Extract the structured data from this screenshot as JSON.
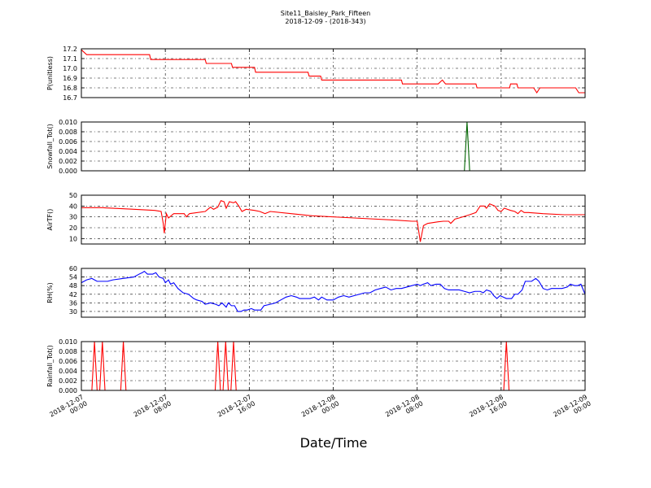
{
  "chart_data": {
    "type": "line",
    "title": "Site11_Baisley_Park_Fifteen",
    "subtitle": "2018-12-09 - (2018-343)",
    "xlabel": "Date/Time",
    "x_ticks": [
      "2018-12-07\n00:00",
      "2018-12-07\n08:00",
      "2018-12-07\n16:00",
      "2018-12-08\n00:00",
      "2018-12-08\n08:00",
      "2018-12-08\n16:00",
      "2018-12-09\n00:00"
    ],
    "x_range_hours": [
      0,
      48
    ],
    "grid": true,
    "panels": [
      {
        "ylabel": "P(unitless)",
        "color": "#ff0000",
        "ylim": [
          16.7,
          17.2
        ],
        "yticks": [
          "17.2",
          "17.1",
          "17.0",
          "16.9",
          "16.8",
          "16.7"
        ],
        "ytick_values": [
          17.2,
          17.1,
          17.0,
          16.9,
          16.8,
          16.7
        ],
        "points": [
          [
            0,
            17.19
          ],
          [
            0.5,
            17.14
          ],
          [
            6.5,
            17.14
          ],
          [
            6.6,
            17.09
          ],
          [
            11.8,
            17.09
          ],
          [
            11.9,
            17.05
          ],
          [
            14.3,
            17.05
          ],
          [
            14.4,
            17.01
          ],
          [
            16.5,
            17.01
          ],
          [
            16.6,
            16.96
          ],
          [
            21.6,
            16.96
          ],
          [
            21.7,
            16.92
          ],
          [
            22.8,
            16.92
          ],
          [
            22.9,
            16.88
          ],
          [
            30.5,
            16.88
          ],
          [
            30.6,
            16.84
          ],
          [
            34,
            16.84
          ],
          [
            34.4,
            16.88
          ],
          [
            34.7,
            16.84
          ],
          [
            37.6,
            16.84
          ],
          [
            37.7,
            16.8
          ],
          [
            40.8,
            16.8
          ],
          [
            40.9,
            16.84
          ],
          [
            41.5,
            16.84
          ],
          [
            41.6,
            16.8
          ],
          [
            43.1,
            16.8
          ],
          [
            43.4,
            16.75
          ],
          [
            43.7,
            16.8
          ],
          [
            47.1,
            16.8
          ],
          [
            47.4,
            16.75
          ],
          [
            48,
            16.75
          ]
        ]
      },
      {
        "ylabel": "Snowfall_Tot()",
        "color": "#006400",
        "ylim": [
          0,
          0.01
        ],
        "yticks": [
          "0.010",
          "0.008",
          "0.006",
          "0.004",
          "0.002",
          "0.000"
        ],
        "ytick_values": [
          0.01,
          0.008,
          0.006,
          0.004,
          0.002,
          0
        ],
        "points": [
          [
            0,
            0
          ],
          [
            36.5,
            0
          ],
          [
            36.75,
            0.01
          ],
          [
            37,
            0
          ],
          [
            48,
            0
          ]
        ]
      },
      {
        "ylabel": "AirTF()",
        "color": "#ff0000",
        "ylim": [
          5,
          50
        ],
        "yticks": [
          "50",
          "40",
          "30",
          "20",
          "10"
        ],
        "ytick_values": [
          50,
          40,
          30,
          20,
          10
        ],
        "points": [
          [
            0,
            38.5
          ],
          [
            2,
            38.5
          ],
          [
            5,
            37
          ],
          [
            7,
            36
          ],
          [
            7.6,
            35
          ],
          [
            7.8,
            24
          ],
          [
            7.9,
            15
          ],
          [
            8.1,
            33
          ],
          [
            8.3,
            29
          ],
          [
            8.8,
            33
          ],
          [
            9.8,
            33
          ],
          [
            10,
            30
          ],
          [
            10.3,
            33
          ],
          [
            11.8,
            35
          ],
          [
            12.3,
            39
          ],
          [
            12.6,
            37
          ],
          [
            13,
            39
          ],
          [
            13.3,
            45
          ],
          [
            13.6,
            44
          ],
          [
            13.8,
            38
          ],
          [
            14.1,
            44
          ],
          [
            14.5,
            43
          ],
          [
            14.7,
            44
          ],
          [
            15,
            40
          ],
          [
            15.3,
            35
          ],
          [
            15.7,
            37
          ],
          [
            16.5,
            36
          ],
          [
            17,
            35
          ],
          [
            17.5,
            33
          ],
          [
            18,
            35
          ],
          [
            20,
            33
          ],
          [
            22,
            31
          ],
          [
            26,
            29
          ],
          [
            30,
            27
          ],
          [
            31.5,
            26
          ],
          [
            32,
            26
          ],
          [
            32.3,
            7
          ],
          [
            32.6,
            22
          ],
          [
            33,
            24
          ],
          [
            34,
            25.5
          ],
          [
            34.5,
            26
          ],
          [
            35,
            26
          ],
          [
            35.2,
            24
          ],
          [
            35.6,
            28
          ],
          [
            36,
            29
          ],
          [
            36.5,
            30.5
          ],
          [
            37,
            32
          ],
          [
            37.6,
            34
          ],
          [
            38,
            40
          ],
          [
            38.4,
            40
          ],
          [
            38.6,
            38
          ],
          [
            38.9,
            42
          ],
          [
            39.4,
            40
          ],
          [
            39.7,
            36
          ],
          [
            40,
            35
          ],
          [
            40.3,
            38
          ],
          [
            40.9,
            36
          ],
          [
            41.3,
            35
          ],
          [
            41.6,
            33
          ],
          [
            41.9,
            36
          ],
          [
            42.2,
            34
          ],
          [
            42.6,
            34
          ],
          [
            44,
            33
          ],
          [
            46,
            32
          ],
          [
            48,
            32
          ]
        ]
      },
      {
        "ylabel": "RH(%)",
        "color": "#0000ff",
        "ylim": [
          26,
          60
        ],
        "yticks": [
          "60",
          "54",
          "48",
          "42",
          "36",
          "30"
        ],
        "ytick_values": [
          60,
          54,
          48,
          42,
          36,
          30
        ],
        "points": [
          [
            0,
            50
          ],
          [
            0.5,
            52
          ],
          [
            1,
            53
          ],
          [
            1.5,
            51
          ],
          [
            2.5,
            51
          ],
          [
            3,
            52
          ],
          [
            4,
            53
          ],
          [
            5,
            54
          ],
          [
            5.5,
            56
          ],
          [
            5.8,
            57
          ],
          [
            6,
            58
          ],
          [
            6.3,
            56
          ],
          [
            6.8,
            56
          ],
          [
            7.1,
            57
          ],
          [
            7.4,
            54
          ],
          [
            7.8,
            53
          ],
          [
            8,
            50
          ],
          [
            8.3,
            52
          ],
          [
            8.5,
            49
          ],
          [
            8.8,
            50
          ],
          [
            9.2,
            46
          ],
          [
            9.7,
            43
          ],
          [
            10.2,
            42
          ],
          [
            10.7,
            39
          ],
          [
            11,
            38
          ],
          [
            11.5,
            37
          ],
          [
            11.8,
            35
          ],
          [
            12.3,
            36
          ],
          [
            12.8,
            35
          ],
          [
            13.1,
            34
          ],
          [
            13.4,
            36
          ],
          [
            13.8,
            33
          ],
          [
            14,
            36
          ],
          [
            14.3,
            34
          ],
          [
            14.6,
            34
          ],
          [
            14.9,
            30
          ],
          [
            15.2,
            30
          ],
          [
            15.5,
            31
          ],
          [
            15.8,
            31
          ],
          [
            16.2,
            32
          ],
          [
            16.5,
            31
          ],
          [
            17.1,
            31
          ],
          [
            17.4,
            34
          ],
          [
            18,
            35
          ],
          [
            18.5,
            36
          ],
          [
            19,
            38
          ],
          [
            19.5,
            40
          ],
          [
            20,
            41
          ],
          [
            20.5,
            40
          ],
          [
            20.8,
            39
          ],
          [
            21.2,
            39
          ],
          [
            21.8,
            39
          ],
          [
            22.2,
            40
          ],
          [
            22.6,
            38
          ],
          [
            22.9,
            40
          ],
          [
            23.4,
            38
          ],
          [
            24,
            38
          ],
          [
            24.5,
            40
          ],
          [
            25,
            41
          ],
          [
            25.5,
            40
          ],
          [
            26,
            41
          ],
          [
            26.5,
            42
          ],
          [
            27,
            43
          ],
          [
            27.5,
            43
          ],
          [
            28,
            45
          ],
          [
            28.5,
            46
          ],
          [
            29,
            47
          ],
          [
            29.5,
            45
          ],
          [
            30,
            46
          ],
          [
            30.5,
            46
          ],
          [
            31,
            47
          ],
          [
            31.5,
            48
          ],
          [
            32,
            49
          ],
          [
            32.3,
            48
          ],
          [
            32.6,
            49
          ],
          [
            33,
            50
          ],
          [
            33.3,
            48
          ],
          [
            33.8,
            49
          ],
          [
            34.2,
            49
          ],
          [
            34.6,
            46
          ],
          [
            35,
            45
          ],
          [
            35.5,
            45
          ],
          [
            36,
            45
          ],
          [
            36.5,
            44
          ],
          [
            37,
            43
          ],
          [
            37.5,
            44
          ],
          [
            38,
            44
          ],
          [
            38.3,
            43
          ],
          [
            38.6,
            45
          ],
          [
            39,
            44
          ],
          [
            39.3,
            41
          ],
          [
            39.6,
            39
          ],
          [
            39.9,
            41
          ],
          [
            40.2,
            40
          ],
          [
            40.5,
            39
          ],
          [
            41,
            39
          ],
          [
            41.3,
            42
          ],
          [
            41.6,
            42
          ],
          [
            42,
            45
          ],
          [
            42.3,
            51
          ],
          [
            42.6,
            51
          ],
          [
            42.9,
            51
          ],
          [
            43.3,
            53
          ],
          [
            43.6,
            51
          ],
          [
            44,
            46
          ],
          [
            44.4,
            45
          ],
          [
            44.8,
            46
          ],
          [
            45.3,
            46
          ],
          [
            45.8,
            46
          ],
          [
            46.3,
            47
          ],
          [
            46.6,
            49
          ],
          [
            47,
            48
          ],
          [
            47.3,
            48
          ],
          [
            47.6,
            49
          ],
          [
            48,
            42
          ]
        ]
      },
      {
        "ylabel": "Rainfall_Tot()",
        "color": "#ff0000",
        "ylim": [
          0,
          0.01
        ],
        "yticks": [
          "0.010",
          "0.008",
          "0.006",
          "0.004",
          "0.002",
          "0.000"
        ],
        "ytick_values": [
          0.01,
          0.008,
          0.006,
          0.004,
          0.002,
          0
        ],
        "points": [
          [
            0,
            0
          ],
          [
            1,
            0
          ],
          [
            1.25,
            0.01
          ],
          [
            1.5,
            0
          ],
          [
            1.75,
            0
          ],
          [
            2,
            0.01
          ],
          [
            2.25,
            0
          ],
          [
            3.75,
            0
          ],
          [
            4,
            0.01
          ],
          [
            4.25,
            0
          ],
          [
            12.75,
            0
          ],
          [
            13,
            0.01
          ],
          [
            13.25,
            0
          ],
          [
            13.5,
            0
          ],
          [
            13.75,
            0.01
          ],
          [
            14,
            0
          ],
          [
            14.25,
            0
          ],
          [
            14.5,
            0.01
          ],
          [
            14.75,
            0
          ],
          [
            40.25,
            0
          ],
          [
            40.5,
            0.01
          ],
          [
            40.75,
            0
          ],
          [
            48,
            0
          ]
        ]
      }
    ]
  }
}
